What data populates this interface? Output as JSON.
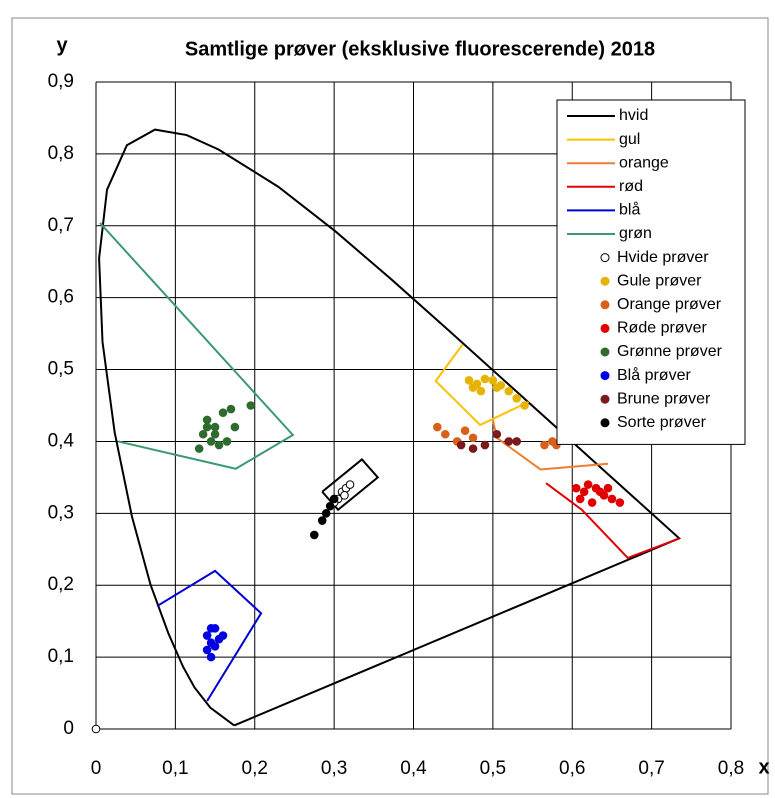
{
  "chart_data": {
    "type": "scatter",
    "title": "Samtlige prøver (eksklusive fluorescerende) 2018",
    "x_label": "x",
    "y_label": "y",
    "xlim": [
      0,
      0.8
    ],
    "ylim": [
      0,
      0.9
    ],
    "xticks": [
      0,
      {
        "value": 0.1,
        "label": "0,1"
      },
      {
        "value": 0.2,
        "label": "0,2"
      },
      {
        "value": 0.3,
        "label": "0,3"
      },
      {
        "value": 0.4,
        "label": "0,4"
      },
      {
        "value": 0.5,
        "label": "0,5"
      },
      {
        "value": 0.6,
        "label": "0,6"
      },
      {
        "value": 0.7,
        "label": "0,7"
      },
      {
        "value": 0.8,
        "label": "0,8"
      }
    ],
    "yticks": [
      0,
      {
        "value": 0.1,
        "label": "0,1"
      },
      {
        "value": 0.2,
        "label": "0,2"
      },
      {
        "value": 0.3,
        "label": "0,3"
      },
      {
        "value": 0.4,
        "label": "0,4"
      },
      {
        "value": 0.5,
        "label": "0,5"
      },
      {
        "value": 0.6,
        "label": "0,6"
      },
      {
        "value": 0.7,
        "label": "0,7"
      },
      {
        "value": 0.8,
        "label": "0,8"
      },
      {
        "value": 0.9,
        "label": "0,9"
      }
    ],
    "grid": true,
    "legend": "top-right",
    "series": [
      {
        "name": "hvid",
        "color": "#000000",
        "mode": "line",
        "x": [
          0.1741,
          0.144,
          0.1241,
          0.1096,
          0.0913,
          0.0687,
          0.0454,
          0.0235,
          0.0082,
          0.0039,
          0.0139,
          0.0389,
          0.0743,
          0.1142,
          0.1547,
          0.2296,
          0.3016,
          0.3731,
          0.4441,
          0.5125,
          0.5752,
          0.627,
          0.6915,
          0.7347,
          0.1741,
          null,
          0.285,
          0.335,
          0.355,
          0.305,
          0.285
        ],
        "values": [
          0.005,
          0.0297,
          0.0578,
          0.0868,
          0.1327,
          0.2007,
          0.295,
          0.4127,
          0.5384,
          0.6548,
          0.7502,
          0.812,
          0.8338,
          0.8262,
          0.8059,
          0.7543,
          0.6923,
          0.6245,
          0.5547,
          0.4866,
          0.4242,
          0.3725,
          0.3083,
          0.2653,
          0.005,
          null,
          0.33,
          0.375,
          0.35,
          0.305,
          0.33
        ]
      },
      {
        "name": "gul",
        "color": "#ffc000",
        "mode": "line",
        "x": [
          0.462,
          0.428,
          0.484,
          0.545
        ],
        "values": [
          0.535,
          0.484,
          0.423,
          0.455
        ]
      },
      {
        "name": "orange",
        "color": "#ed7d31",
        "mode": "line",
        "x": [
          0.5,
          0.505,
          0.56,
          0.645
        ],
        "values": [
          0.43,
          0.405,
          0.361,
          0.369
        ]
      },
      {
        "name": "rød",
        "color": "#e00000",
        "mode": "line",
        "x": [
          0.567,
          0.612,
          0.67,
          0.735
        ],
        "values": [
          0.342,
          0.305,
          0.238,
          0.265
        ]
      },
      {
        "name": "blå",
        "color": "#0000d0",
        "mode": "line",
        "x": [
          0.077,
          0.15,
          0.208,
          0.14
        ],
        "values": [
          0.171,
          0.22,
          0.161,
          0.039
        ]
      },
      {
        "name": "grøn",
        "color": "#3c9a70",
        "mode": "line",
        "x": [
          0.005,
          0.248,
          0.176,
          0.028
        ],
        "values": [
          0.704,
          0.409,
          0.362,
          0.4
        ]
      },
      {
        "name": "Hvide prøver",
        "color": "#ffffff",
        "mode": "markers",
        "x": [
          0.305,
          0.31,
          0.315,
          0.32,
          0.3,
          0.313,
          0
        ],
        "values": [
          0.32,
          0.33,
          0.335,
          0.34,
          0.315,
          0.325,
          0
        ]
      },
      {
        "name": "Gule prøver",
        "color": "#e6b400",
        "mode": "markers",
        "x": [
          0.47,
          0.48,
          0.49,
          0.5,
          0.51,
          0.52,
          0.53,
          0.485,
          0.505,
          0.54,
          0.475
        ],
        "values": [
          0.485,
          0.48,
          0.487,
          0.485,
          0.478,
          0.47,
          0.46,
          0.47,
          0.475,
          0.45,
          0.475
        ]
      },
      {
        "name": "Orange prøver",
        "color": "#d9601a",
        "mode": "markers",
        "x": [
          0.43,
          0.44,
          0.455,
          0.465,
          0.475,
          0.565,
          0.575,
          0.58
        ],
        "values": [
          0.42,
          0.41,
          0.4,
          0.415,
          0.405,
          0.395,
          0.4,
          0.395
        ]
      },
      {
        "name": "Røde prøver",
        "color": "#e00000",
        "mode": "markers",
        "x": [
          0.605,
          0.615,
          0.62,
          0.63,
          0.64,
          0.65,
          0.66,
          0.625,
          0.635,
          0.645,
          0.61
        ],
        "values": [
          0.335,
          0.33,
          0.34,
          0.335,
          0.325,
          0.32,
          0.315,
          0.315,
          0.33,
          0.335,
          0.32
        ]
      },
      {
        "name": "Grønne prøver",
        "color": "#2e6b2e",
        "mode": "markers",
        "x": [
          0.13,
          0.135,
          0.14,
          0.145,
          0.15,
          0.155,
          0.16,
          0.17,
          0.175,
          0.195,
          0.14,
          0.15,
          0.165
        ],
        "values": [
          0.39,
          0.41,
          0.43,
          0.4,
          0.42,
          0.395,
          0.44,
          0.445,
          0.42,
          0.45,
          0.42,
          0.41,
          0.4
        ]
      },
      {
        "name": "Blå prøver",
        "color": "#0000e0",
        "mode": "markers",
        "x": [
          0.14,
          0.145,
          0.15,
          0.155,
          0.14,
          0.145,
          0.15,
          0.16,
          0.145
        ],
        "values": [
          0.13,
          0.12,
          0.14,
          0.125,
          0.11,
          0.1,
          0.115,
          0.13,
          0.14
        ]
      },
      {
        "name": "Brune prøver",
        "color": "#7b1a1a",
        "mode": "markers",
        "x": [
          0.46,
          0.475,
          0.49,
          0.505,
          0.52,
          0.53
        ],
        "values": [
          0.395,
          0.39,
          0.395,
          0.41,
          0.4,
          0.4
        ]
      },
      {
        "name": "Sorte prøver",
        "color": "#000000",
        "mode": "markers",
        "x": [
          0.275,
          0.285,
          0.29,
          0.295,
          0.3
        ],
        "values": [
          0.27,
          0.29,
          0.3,
          0.31,
          0.32
        ]
      }
    ]
  }
}
